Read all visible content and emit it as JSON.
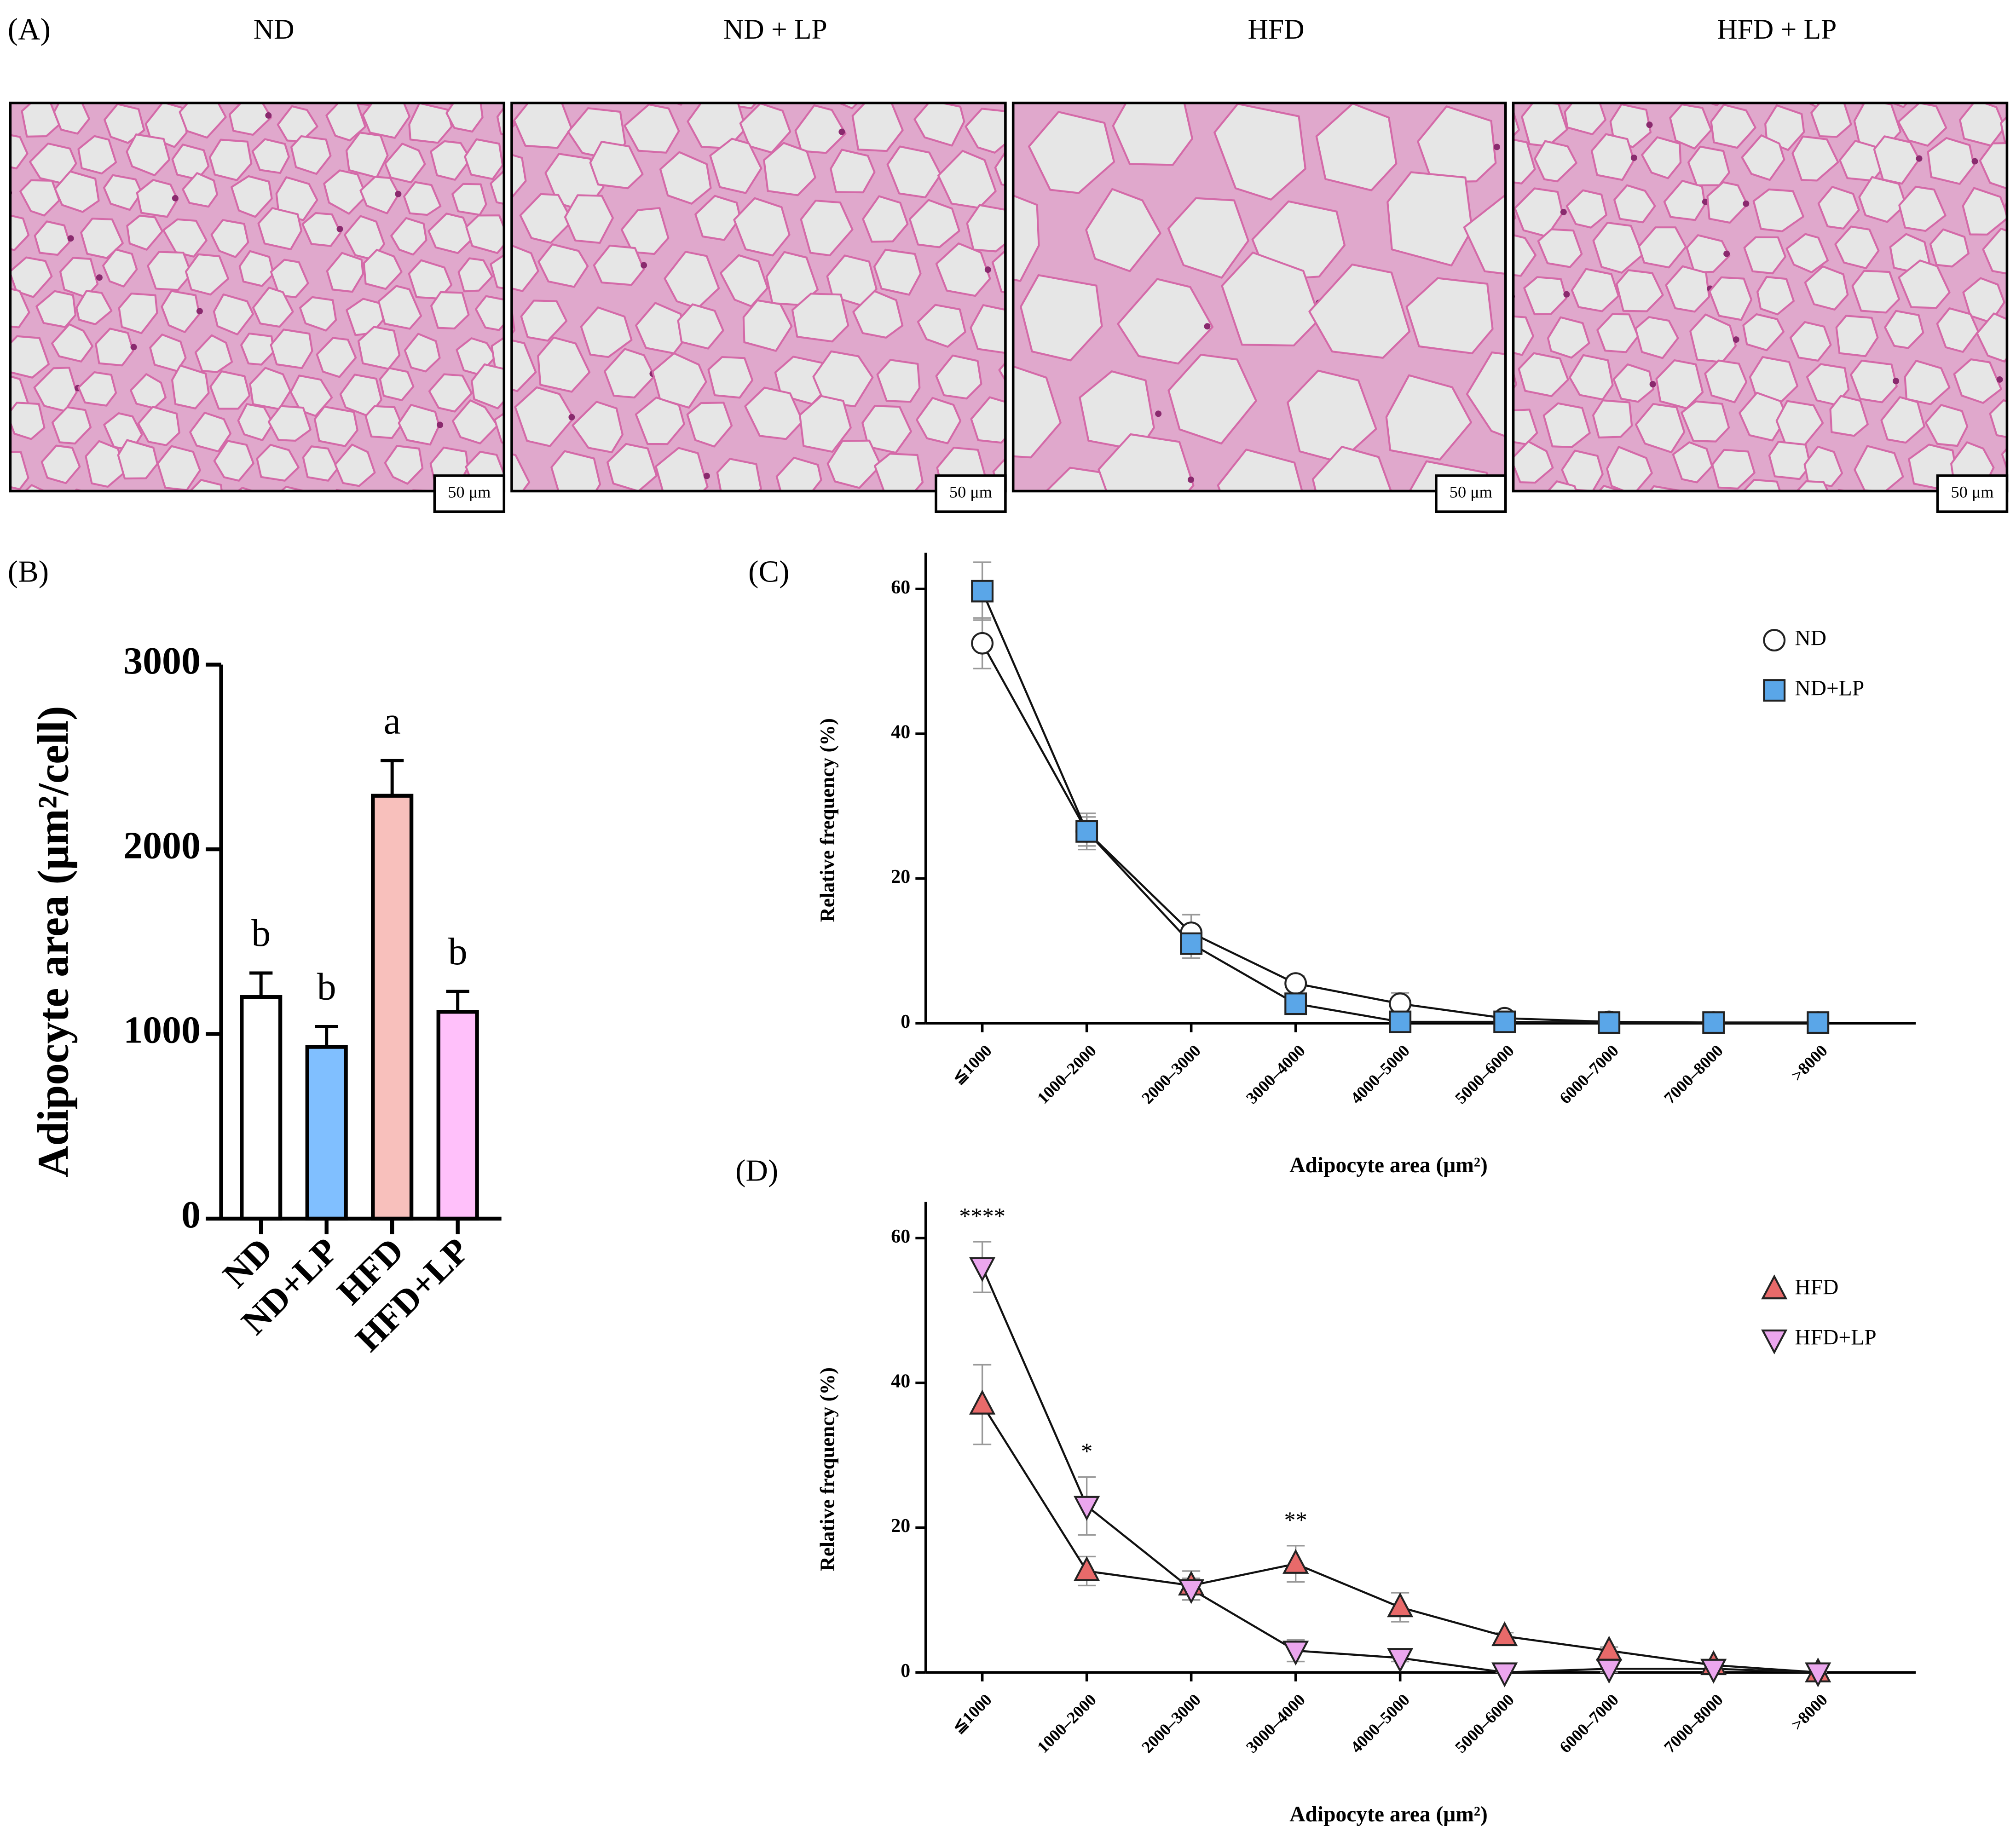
{
  "panel_labels": [
    "(A)",
    "(B)",
    "(C)",
    "(D)"
  ],
  "micrographs": [
    {
      "title": "ND",
      "scale_bar": "50 μm"
    },
    {
      "title": "ND + LP",
      "scale_bar": "50 μm"
    },
    {
      "title": "HFD",
      "scale_bar": "50 μm"
    },
    {
      "title": "HFD + LP",
      "scale_bar": "50 μm"
    }
  ],
  "chart_data": [
    {
      "type": "bar",
      "ylabel": "Adipocyte area (μm²/cell)",
      "categories": [
        "ND",
        "ND+LP",
        "HFD",
        "HFD+LP"
      ],
      "values": [
        1200,
        930,
        2290,
        1120
      ],
      "errors": [
        130,
        110,
        190,
        110
      ],
      "colors": [
        "#ffffff",
        "#80bfff",
        "#f8c0bc",
        "#ffc0fa"
      ],
      "letters": [
        "b",
        "b",
        "a",
        "b"
      ],
      "ylim": [
        0,
        3000
      ],
      "yticks": [
        0,
        1000,
        2000,
        3000
      ]
    },
    {
      "type": "line",
      "xlabel": "Adipocyte area (μm²)",
      "ylabel": "Relative frequency (%)",
      "categories": [
        "≦1000",
        "1000–2000",
        "2000–3000",
        "3000–4000",
        "4000–5000",
        "5000–6000",
        "6000–7000",
        "7000–8000",
        ">8000"
      ],
      "series": [
        {
          "name": "ND",
          "marker": "circle",
          "color": "#ffffff",
          "values": [
            52.5,
            26.5,
            12.5,
            5.5,
            2.7,
            0.7,
            0.2,
            0.1,
            0.1
          ],
          "errors": [
            3.5,
            2,
            2.5,
            1,
            1.5,
            0.3,
            0.1,
            0.1,
            0.1
          ]
        },
        {
          "name": "ND+LP",
          "marker": "square",
          "color": "#5aa6e8",
          "values": [
            59.7,
            26.5,
            11,
            2.7,
            0.2,
            0.2,
            0.1,
            0.1,
            0.1
          ],
          "errors": [
            4,
            2.5,
            2,
            1,
            0.3,
            0.2,
            0.1,
            0.1,
            0.1
          ]
        }
      ],
      "ylim": [
        0,
        65
      ],
      "yticks": [
        0,
        20,
        40,
        60
      ],
      "legend": "right"
    },
    {
      "type": "line",
      "xlabel": "Adipocyte area (μm²)",
      "ylabel": "Relative frequency (%)",
      "categories": [
        "≦1000",
        "1000–2000",
        "2000–3000",
        "3000–4000",
        "4000–5000",
        "5000–6000",
        "6000–7000",
        "7000–8000",
        ">8000"
      ],
      "series": [
        {
          "name": "HFD",
          "marker": "triangle-up",
          "color": "#e86a6a",
          "values": [
            37,
            14,
            12,
            15,
            9,
            5,
            3,
            1,
            0
          ],
          "errors": [
            5.5,
            2,
            2,
            2.5,
            2,
            0.5,
            0.5,
            0.3,
            0
          ]
        },
        {
          "name": "HFD+LP",
          "marker": "triangle-down",
          "color": "#eba6ee",
          "values": [
            56,
            23,
            11.5,
            3,
            2,
            0,
            0.5,
            0.5,
            0
          ],
          "errors": [
            3.5,
            4,
            1.5,
            1.5,
            0.5,
            0,
            0.5,
            0.3,
            0
          ]
        }
      ],
      "annotations": [
        {
          "label": "****",
          "x": "≦1000"
        },
        {
          "label": "*",
          "x": "1000–2000"
        },
        {
          "label": "**",
          "x": "3000–4000"
        }
      ],
      "ylim": [
        0,
        65
      ],
      "yticks": [
        0,
        20,
        40,
        60
      ],
      "legend": "right"
    }
  ]
}
